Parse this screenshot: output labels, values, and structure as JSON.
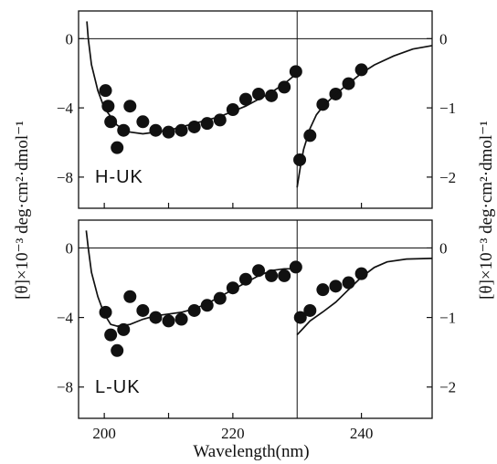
{
  "chart_data": [
    {
      "type": "scatter",
      "panel_label": "H-UK",
      "xlim": [
        196,
        251
      ],
      "ylim_left": [
        -9.8,
        1.6
      ],
      "yticks_left": [
        0,
        -4,
        -8
      ],
      "ylim_right": [
        -2.45,
        0.4
      ],
      "yticks_right": [
        0,
        -1,
        -2
      ],
      "split_x": 230,
      "series": [
        {
          "kind": "points",
          "points": [
            [
              200.2,
              -3.0
            ],
            [
              200.6,
              -3.9
            ],
            [
              201.0,
              -4.8
            ],
            [
              202.0,
              -6.3
            ],
            [
              203.0,
              -5.3
            ],
            [
              204.0,
              -3.9
            ],
            [
              206.0,
              -4.8
            ],
            [
              208.0,
              -5.3
            ],
            [
              210.0,
              -5.4
            ],
            [
              212.0,
              -5.3
            ],
            [
              214.0,
              -5.1
            ],
            [
              216.0,
              -4.9
            ],
            [
              218.0,
              -4.7
            ],
            [
              220.0,
              -4.1
            ],
            [
              222.0,
              -3.5
            ],
            [
              224.0,
              -3.2
            ],
            [
              226.0,
              -3.3
            ],
            [
              228.0,
              -2.8
            ],
            [
              229.8,
              -1.9
            ]
          ]
        },
        {
          "kind": "curve",
          "points": [
            [
              197.3,
              1.0
            ],
            [
              197.5,
              0.0
            ],
            [
              198.0,
              -1.5
            ],
            [
              199.0,
              -3.0
            ],
            [
              200.0,
              -4.0
            ],
            [
              202.0,
              -5.0
            ],
            [
              204.0,
              -5.4
            ],
            [
              206.0,
              -5.5
            ],
            [
              208.0,
              -5.4
            ],
            [
              210.0,
              -5.3
            ],
            [
              212.0,
              -5.1
            ],
            [
              214.0,
              -4.9
            ],
            [
              216.0,
              -4.7
            ],
            [
              218.0,
              -4.5
            ],
            [
              220.0,
              -4.2
            ],
            [
              222.0,
              -3.9
            ],
            [
              224.0,
              -3.5
            ],
            [
              226.0,
              -3.1
            ],
            [
              228.0,
              -2.6
            ],
            [
              230.0,
              -2.0
            ]
          ]
        },
        {
          "kind": "points",
          "axis": "right",
          "points": [
            [
              230.4,
              -1.75
            ],
            [
              232.0,
              -1.4
            ],
            [
              234.0,
              -0.95
            ],
            [
              236.0,
              -0.8
            ],
            [
              238.0,
              -0.65
            ],
            [
              240.0,
              -0.45
            ]
          ]
        },
        {
          "kind": "curve",
          "axis": "right",
          "points": [
            [
              230.0,
              -2.15
            ],
            [
              230.5,
              -1.85
            ],
            [
              231.0,
              -1.6
            ],
            [
              232.0,
              -1.3
            ],
            [
              233.0,
              -1.1
            ],
            [
              234.0,
              -0.98
            ],
            [
              236.0,
              -0.8
            ],
            [
              238.0,
              -0.65
            ],
            [
              240.0,
              -0.5
            ],
            [
              242.0,
              -0.38
            ],
            [
              245.0,
              -0.25
            ],
            [
              248.0,
              -0.15
            ],
            [
              251.0,
              -0.1
            ]
          ]
        }
      ]
    },
    {
      "type": "scatter",
      "panel_label": "L-UK",
      "xlim": [
        196,
        251
      ],
      "ylim_left": [
        -9.8,
        1.6
      ],
      "yticks_left": [
        0,
        -4,
        -8
      ],
      "ylim_right": [
        -2.45,
        0.4
      ],
      "yticks_right": [
        0,
        -1,
        -2
      ],
      "xticks": [
        200,
        220,
        240
      ],
      "split_x": 230,
      "series": [
        {
          "kind": "points",
          "points": [
            [
              200.2,
              -3.7
            ],
            [
              201.0,
              -5.0
            ],
            [
              202.0,
              -5.9
            ],
            [
              203.0,
              -4.7
            ],
            [
              204.0,
              -2.8
            ],
            [
              206.0,
              -3.6
            ],
            [
              208.0,
              -4.0
            ],
            [
              210.0,
              -4.2
            ],
            [
              212.0,
              -4.1
            ],
            [
              214.0,
              -3.6
            ],
            [
              216.0,
              -3.3
            ],
            [
              218.0,
              -2.9
            ],
            [
              220.0,
              -2.3
            ],
            [
              222.0,
              -1.8
            ],
            [
              224.0,
              -1.3
            ],
            [
              226.0,
              -1.6
            ],
            [
              228.0,
              -1.6
            ],
            [
              229.8,
              -1.1
            ]
          ]
        },
        {
          "kind": "curve",
          "points": [
            [
              197.2,
              1.0
            ],
            [
              197.5,
              0.0
            ],
            [
              198.0,
              -1.4
            ],
            [
              199.0,
              -2.8
            ],
            [
              200.0,
              -3.8
            ],
            [
              201.0,
              -4.4
            ],
            [
              202.0,
              -4.5
            ],
            [
              204.0,
              -4.4
            ],
            [
              206.0,
              -4.1
            ],
            [
              208.0,
              -3.9
            ],
            [
              210.0,
              -3.8
            ],
            [
              212.0,
              -3.7
            ],
            [
              214.0,
              -3.5
            ],
            [
              216.0,
              -3.2
            ],
            [
              218.0,
              -2.8
            ],
            [
              220.0,
              -2.4
            ],
            [
              222.0,
              -2.0
            ],
            [
              224.0,
              -1.6
            ],
            [
              226.0,
              -1.3
            ],
            [
              228.0,
              -1.2
            ],
            [
              230.0,
              -1.2
            ]
          ]
        },
        {
          "kind": "points",
          "axis": "right",
          "points": [
            [
              230.5,
              -1.0
            ],
            [
              232.0,
              -0.9
            ],
            [
              234.0,
              -0.6
            ],
            [
              236.0,
              -0.55
            ],
            [
              238.0,
              -0.5
            ],
            [
              240.0,
              -0.37
            ]
          ]
        },
        {
          "kind": "curve",
          "axis": "right",
          "points": [
            [
              230.0,
              -1.25
            ],
            [
              231.0,
              -1.15
            ],
            [
              232.0,
              -1.05
            ],
            [
              234.0,
              -0.92
            ],
            [
              236.0,
              -0.78
            ],
            [
              238.0,
              -0.6
            ],
            [
              240.0,
              -0.42
            ],
            [
              242.0,
              -0.28
            ],
            [
              244.0,
              -0.2
            ],
            [
              247.0,
              -0.16
            ],
            [
              251.0,
              -0.15
            ]
          ]
        }
      ]
    }
  ],
  "axes": {
    "xlabel": "Wavelength(nm)",
    "ylabel_left": "[θ]×10⁻³  deg·cm²·dmol⁻¹",
    "ylabel_right": "[θ]×10⁻³  deg·cm²·dmol⁻¹"
  },
  "style": {
    "ink": "#111111"
  }
}
